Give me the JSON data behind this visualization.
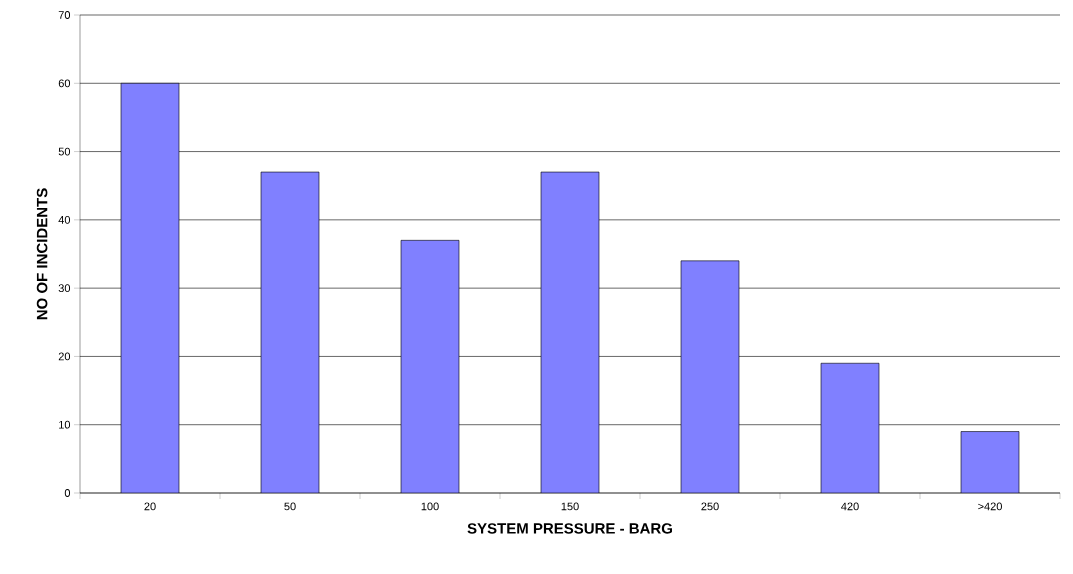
{
  "chart_data": {
    "type": "bar",
    "xlabel": "SYSTEM PRESSURE - BARG",
    "ylabel": "NO OF INCIDENTS",
    "categories": [
      "20",
      "50",
      "100",
      "150",
      "250",
      "420",
      ">420"
    ],
    "values": [
      60,
      47,
      37,
      47,
      34,
      19,
      9
    ],
    "color": "#8080ff",
    "ylim": [
      0,
      70
    ],
    "yticks": [
      0,
      10,
      20,
      30,
      40,
      50,
      60,
      70
    ],
    "grid": "y"
  }
}
